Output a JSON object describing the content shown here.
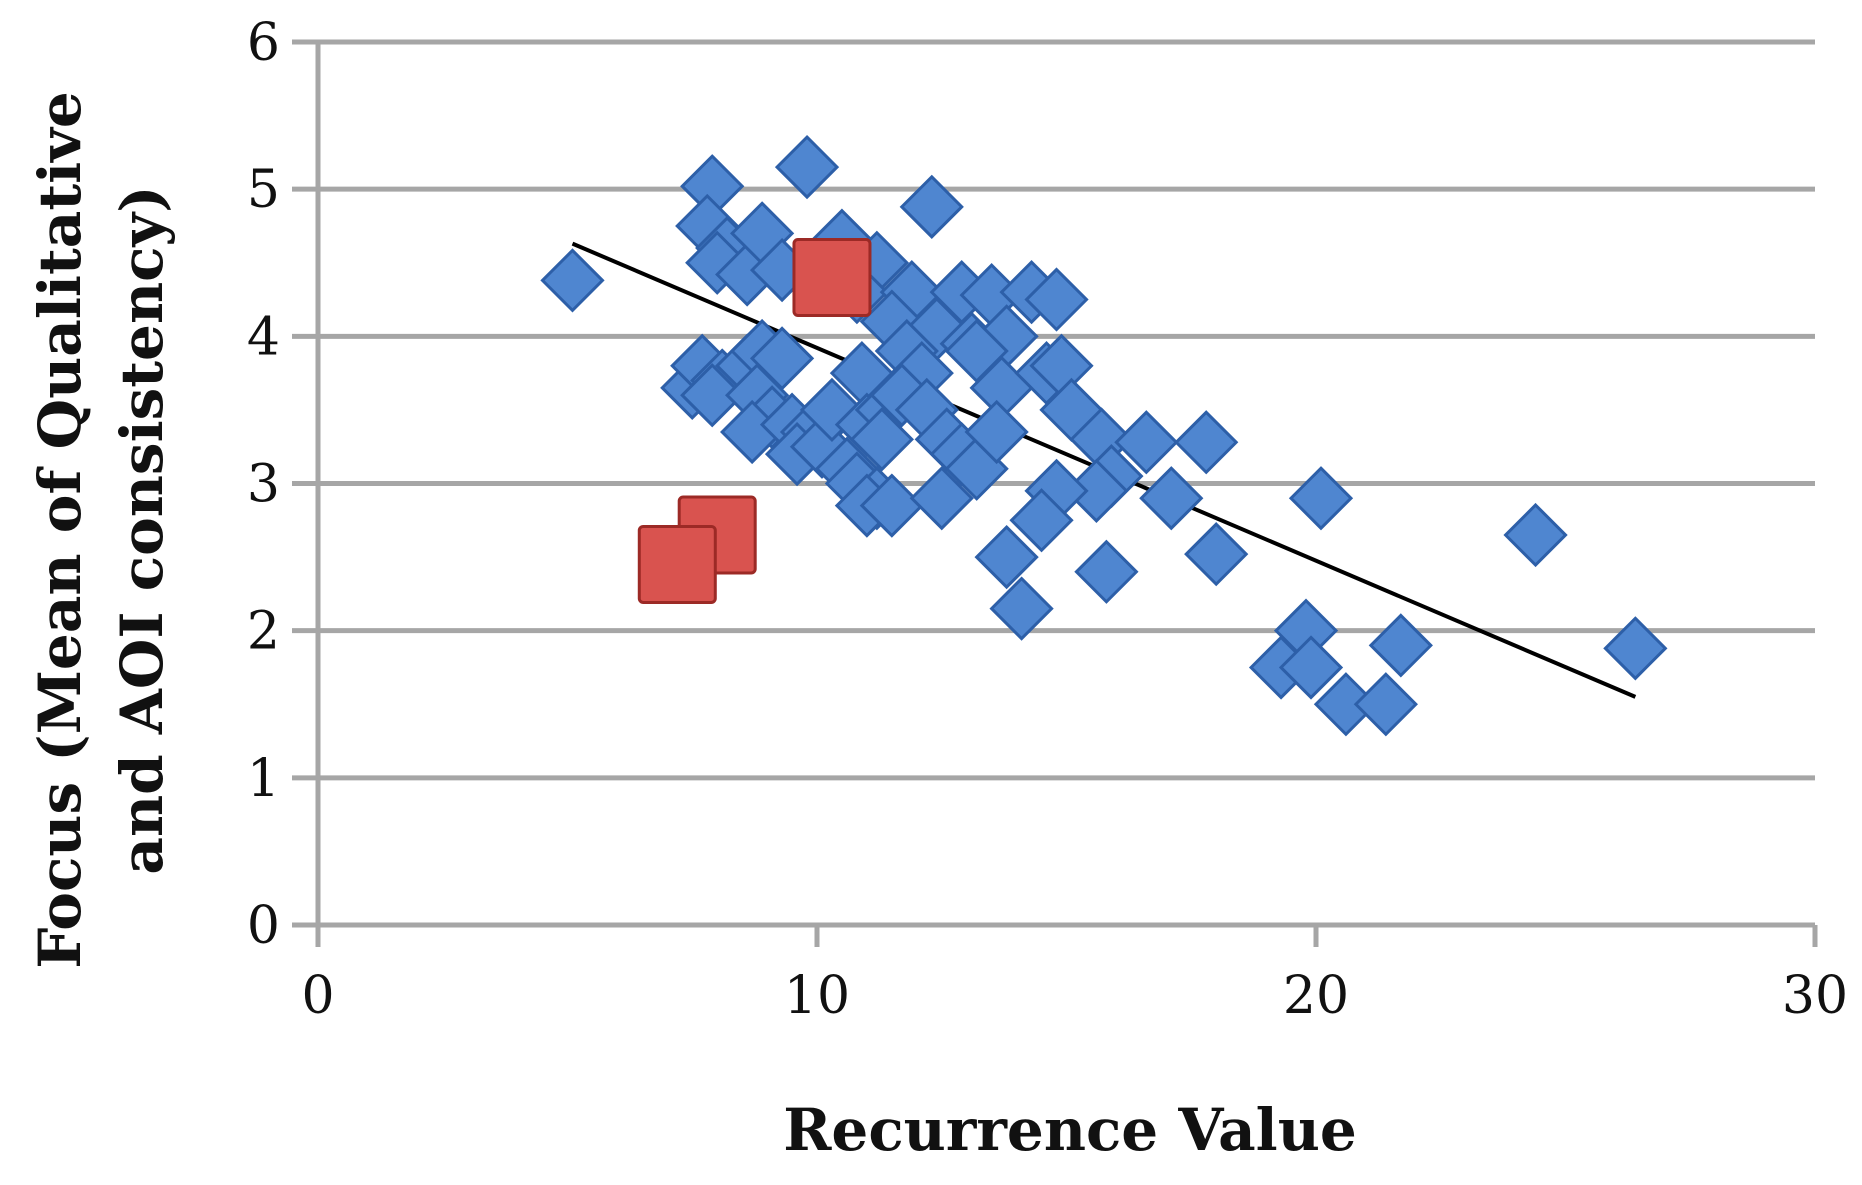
{
  "chart_data": {
    "type": "scatter",
    "xlabel": "Recurrence Value",
    "ylabel_lines": [
      "Focus (Mean of Qualitative",
      "and AOI consistency)"
    ],
    "xlim": [
      0,
      30
    ],
    "ylim": [
      0,
      6
    ],
    "x_ticks": [
      "0",
      "10",
      "20",
      "30"
    ],
    "y_ticks": [
      "0",
      "1",
      "2",
      "3",
      "4",
      "5",
      "6"
    ],
    "grid": "horizontal",
    "colors": {
      "diamond": "#4f86d0",
      "diamond_stroke": "#2d5fa8",
      "square": "#d9534f",
      "square_stroke": "#9c2a26",
      "trend": "#000000",
      "grid": "#a6a6a6"
    },
    "series": [
      {
        "marker": "diamond",
        "points": [
          [
            5.1,
            4.38
          ],
          [
            7.9,
            5.02
          ],
          [
            7.8,
            4.75
          ],
          [
            8.2,
            4.6
          ],
          [
            8.0,
            4.5
          ],
          [
            8.6,
            4.42
          ],
          [
            8.9,
            4.7
          ],
          [
            9.3,
            4.45
          ],
          [
            9.8,
            5.15
          ],
          [
            10.5,
            4.65
          ],
          [
            11.2,
            4.5
          ],
          [
            10.8,
            4.3
          ],
          [
            12.3,
            4.88
          ],
          [
            11.9,
            4.3
          ],
          [
            11.5,
            4.1
          ],
          [
            12.9,
            4.3
          ],
          [
            13.5,
            4.28
          ],
          [
            14.3,
            4.3
          ],
          [
            14.8,
            4.25
          ],
          [
            12.4,
            4.05
          ],
          [
            13.1,
            3.95
          ],
          [
            13.8,
            4.0
          ],
          [
            11.8,
            3.9
          ],
          [
            12.1,
            3.75
          ],
          [
            13.2,
            3.9
          ],
          [
            13.7,
            3.65
          ],
          [
            14.6,
            3.75
          ],
          [
            14.9,
            3.8
          ],
          [
            10.9,
            3.75
          ],
          [
            7.5,
            3.65
          ],
          [
            7.7,
            3.8
          ],
          [
            8.1,
            3.7
          ],
          [
            7.9,
            3.6
          ],
          [
            8.6,
            3.8
          ],
          [
            8.9,
            3.9
          ],
          [
            9.3,
            3.85
          ],
          [
            8.8,
            3.6
          ],
          [
            9.1,
            3.45
          ],
          [
            8.7,
            3.35
          ],
          [
            9.5,
            3.4
          ],
          [
            9.9,
            3.35
          ],
          [
            9.6,
            3.2
          ],
          [
            10.1,
            3.25
          ],
          [
            10.3,
            3.5
          ],
          [
            11.0,
            3.4
          ],
          [
            11.4,
            3.5
          ],
          [
            11.7,
            3.6
          ],
          [
            11.3,
            3.3
          ],
          [
            12.2,
            3.5
          ],
          [
            12.6,
            3.3
          ],
          [
            12.9,
            3.2
          ],
          [
            13.2,
            3.1
          ],
          [
            13.6,
            3.35
          ],
          [
            10.6,
            3.1
          ],
          [
            10.8,
            3.0
          ],
          [
            11.2,
            2.9
          ],
          [
            11.0,
            2.85
          ],
          [
            11.5,
            2.85
          ],
          [
            12.5,
            2.9
          ],
          [
            15.1,
            3.5
          ],
          [
            15.7,
            3.3
          ],
          [
            16.6,
            3.28
          ],
          [
            15.9,
            3.05
          ],
          [
            15.6,
            2.95
          ],
          [
            17.1,
            2.9
          ],
          [
            17.8,
            3.28
          ],
          [
            14.8,
            2.95
          ],
          [
            14.5,
            2.75
          ],
          [
            13.8,
            2.5
          ],
          [
            14.1,
            2.15
          ],
          [
            15.8,
            2.4
          ],
          [
            18.0,
            2.52
          ],
          [
            20.1,
            2.9
          ],
          [
            24.4,
            2.65
          ],
          [
            19.3,
            1.75
          ],
          [
            19.8,
            2.0
          ],
          [
            19.9,
            1.75
          ],
          [
            20.6,
            1.5
          ],
          [
            21.4,
            1.5
          ],
          [
            21.7,
            1.9
          ],
          [
            26.4,
            1.88
          ]
        ]
      },
      {
        "marker": "square",
        "points": [
          [
            10.3,
            4.4
          ],
          [
            8.0,
            2.65
          ],
          [
            7.2,
            2.45
          ]
        ]
      }
    ],
    "trendline": {
      "x": [
        5.1,
        26.4
      ],
      "y": [
        4.63,
        1.55
      ]
    }
  }
}
